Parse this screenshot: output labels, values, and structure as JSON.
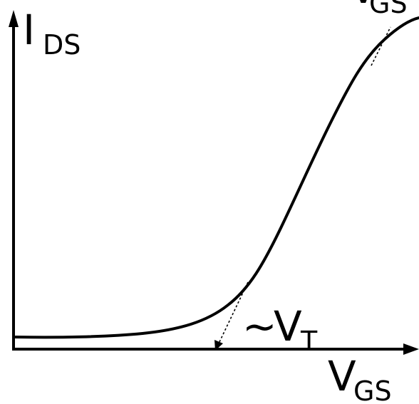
{
  "diagram": {
    "y_axis_label": {
      "main": "I",
      "sub": "DS"
    },
    "x_axis_label": {
      "main": "V",
      "sub": "GS"
    },
    "top_right_label": {
      "main": "V",
      "sub": "GS"
    },
    "threshold_label": {
      "prefix": "~",
      "main": "V",
      "sub": "T"
    }
  }
}
